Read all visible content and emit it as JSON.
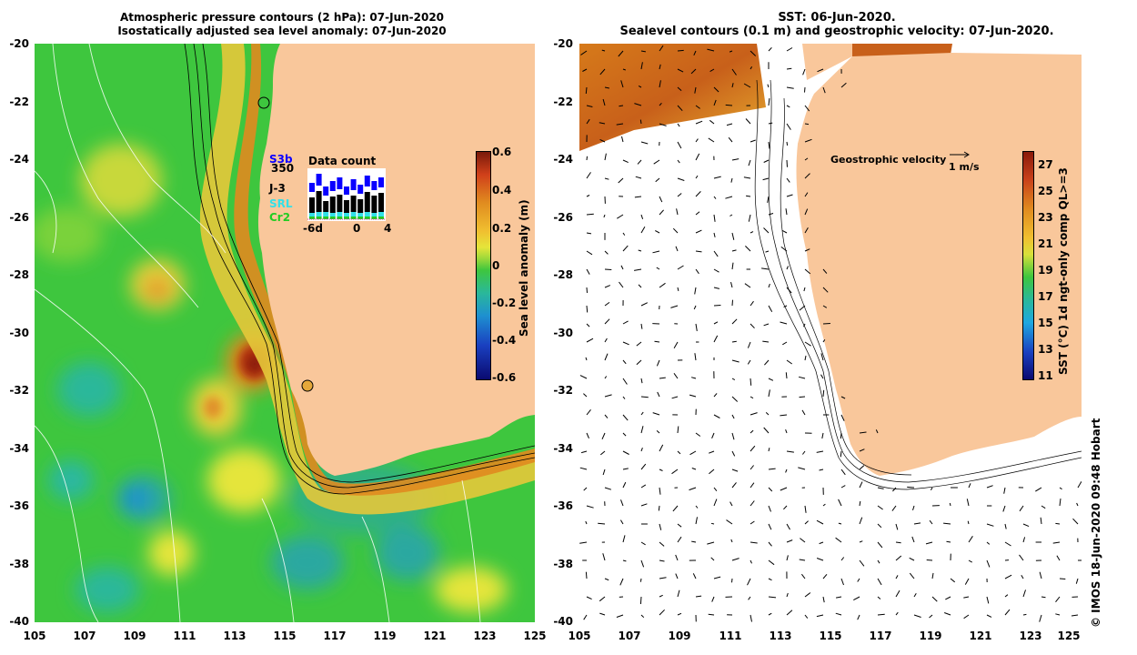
{
  "left_map": {
    "title_line1": "Atmospheric pressure contours (2 hPa): 07-Jun-2020",
    "title_line2": "Isostatically adjusted sea level anomaly: 07-Jun-2020",
    "y_ticks": [
      "-20",
      "-22",
      "-24",
      "-26",
      "-28",
      "-30",
      "-32",
      "-34",
      "-36",
      "-38",
      "-40"
    ],
    "x_ticks": [
      "105",
      "107",
      "109",
      "111",
      "113",
      "115",
      "117",
      "119",
      "121",
      "123",
      "125"
    ],
    "colorbar": {
      "title": "Sea level anomaly (m)",
      "ticks": [
        "0.6",
        "0.4",
        "0.2",
        "0",
        "-0.2",
        "-0.4",
        "-0.6"
      ],
      "range": [
        -0.6,
        0.6
      ]
    },
    "data_count": {
      "title": "Data count",
      "labels": [
        {
          "text": "S3b",
          "color": "#0a00ff"
        },
        {
          "text": "350",
          "color": "#000000"
        },
        {
          "text": "J-3",
          "color": "#000000"
        },
        {
          "text": "SRL",
          "color": "#33e0e8"
        },
        {
          "text": "Cr2",
          "color": "#22cc22"
        }
      ],
      "axis_labels": [
        "-6d",
        "0",
        "4"
      ]
    },
    "colors": {
      "land": "#f9c79b",
      "sla_zero": "#3ec63e",
      "sla_pos": "#e5e53a",
      "sla_high": "#e08a1f",
      "sla_max": "#a02a10",
      "sla_neg": "#2aa8a0"
    }
  },
  "right_map": {
    "title_line1": "SST: 06-Jun-2020.",
    "title_line2": "Sealevel contours (0.1 m) and geostrophic velocity: 07-Jun-2020.",
    "y_ticks": [
      "-20",
      "-22",
      "-24",
      "-26",
      "-28",
      "-30",
      "-32",
      "-34",
      "-36",
      "-38",
      "-40"
    ],
    "x_ticks": [
      "105",
      "107",
      "109",
      "111",
      "113",
      "115",
      "117",
      "119",
      "121",
      "123",
      "125"
    ],
    "geostrophic_label": "Geostrophic velocity",
    "geostrophic_unit": "1 m/s",
    "colorbar": {
      "title": "SST (°C) 1d ngt-only comp QL>=3",
      "ticks": [
        "27",
        "25",
        "23",
        "21",
        "19",
        "17",
        "15",
        "13",
        "11"
      ],
      "range": [
        11,
        28
      ]
    }
  },
  "credit": "© IMOS 18-Jun-2020 09:48 Hobart"
}
